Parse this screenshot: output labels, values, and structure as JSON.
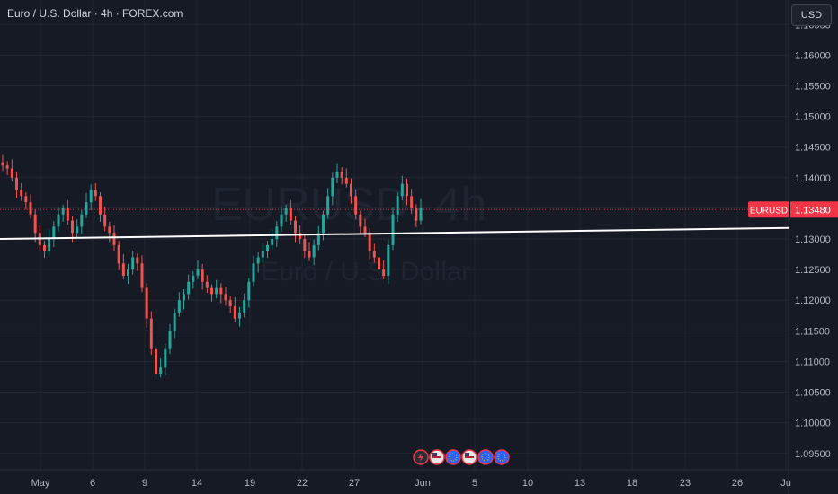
{
  "header": {
    "title": "Euro / U.S. Dollar · 4h · FOREX.com",
    "currency_button": "USD"
  },
  "watermark": {
    "symbol": "EURUSD, 4h",
    "name": "Euro / U.S. Dollar"
  },
  "price_axis": {
    "labels": [
      "1.16500",
      "1.16000",
      "1.15500",
      "1.15000",
      "1.14500",
      "1.14000",
      "1.13500",
      "1.13000",
      "1.12500",
      "1.12000",
      "1.11500",
      "1.11000",
      "1.10500",
      "1.10000",
      "1.09500"
    ]
  },
  "time_axis": {
    "labels": [
      "May",
      "6",
      "9",
      "14",
      "19",
      "22",
      "27",
      "Jun",
      "5",
      "10",
      "13",
      "18",
      "23",
      "26",
      "Ju"
    ]
  },
  "price_tag": {
    "symbol": "EURUSD",
    "price": "1.13480"
  },
  "event_icons": [
    "lightning-icon",
    "us-flag-icon",
    "eu-flag-icon",
    "us-flag-icon",
    "eu-flag-icon",
    "eu-flag-icon"
  ],
  "colors": {
    "background": "#161a25",
    "up": "#26a69a",
    "down": "#ef5350",
    "trendline": "#ffffff",
    "price_tag": "#f23645"
  },
  "chart_data": {
    "type": "candlestick",
    "symbol": "EURUSD",
    "interval": "4h",
    "y_range": [
      1.0935,
      1.1668
    ],
    "last_price": 1.1348,
    "trendline": {
      "start": 1.13,
      "end": 1.1318
    },
    "close_series": [
      1.142,
      1.1415,
      1.14,
      1.138,
      1.137,
      1.136,
      1.134,
      1.131,
      1.129,
      1.128,
      1.13,
      1.132,
      1.134,
      1.135,
      1.133,
      1.131,
      1.132,
      1.134,
      1.136,
      1.138,
      1.137,
      1.134,
      1.132,
      1.131,
      1.129,
      1.126,
      1.124,
      1.125,
      1.127,
      1.126,
      1.122,
      1.117,
      1.112,
      1.108,
      1.109,
      1.112,
      1.115,
      1.118,
      1.12,
      1.121,
      1.123,
      1.124,
      1.125,
      1.123,
      1.122,
      1.121,
      1.122,
      1.121,
      1.12,
      1.119,
      1.117,
      1.118,
      1.12,
      1.123,
      1.126,
      1.127,
      1.128,
      1.129,
      1.13,
      1.132,
      1.134,
      1.135,
      1.133,
      1.131,
      1.13,
      1.128,
      1.127,
      1.129,
      1.131,
      1.134,
      1.137,
      1.14,
      1.141,
      1.14,
      1.139,
      1.137,
      1.134,
      1.132,
      1.131,
      1.128,
      1.127,
      1.125,
      1.124,
      1.129,
      1.134,
      1.137,
      1.139,
      1.137,
      1.135,
      1.133,
      1.135
    ]
  }
}
